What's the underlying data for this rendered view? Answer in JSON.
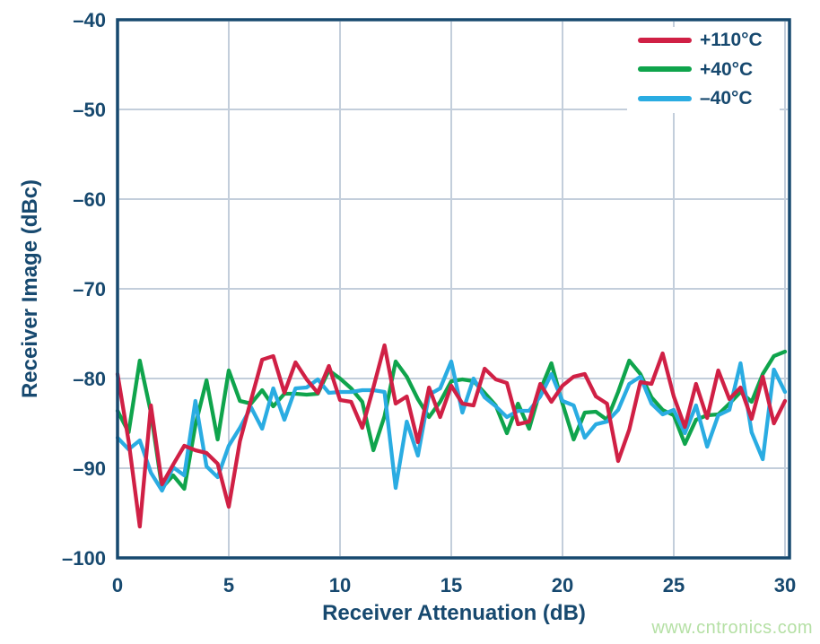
{
  "page": {
    "background": "#ffffff",
    "watermark": "www.cntronics.com"
  },
  "colors": {
    "axis": "#17496f",
    "text": "#17496f",
    "grid": "#c3cedb",
    "watermark": "#b5e0a5"
  },
  "chart_data": {
    "type": "line",
    "title": "",
    "xlabel": "Receiver Attenuation (dB)",
    "ylabel": "Receiver Image (dBc)",
    "xlim": [
      0,
      30
    ],
    "ylim": [
      -100,
      -40
    ],
    "grid": true,
    "legend_position": "top-right-inside",
    "x_ticks": [
      0,
      5,
      10,
      15,
      20,
      25,
      30
    ],
    "x_tick_labels": [
      "0",
      "5",
      "10",
      "15",
      "20",
      "25",
      "30"
    ],
    "y_ticks": [
      -40,
      -50,
      -60,
      -70,
      -80,
      -90,
      -100
    ],
    "y_tick_labels": [
      "–40",
      "–50",
      "–60",
      "–70",
      "–80",
      "–90",
      "–100"
    ],
    "x": [
      0,
      0.5,
      1,
      1.5,
      2,
      2.5,
      3,
      3.5,
      4,
      4.5,
      5,
      5.5,
      6,
      6.5,
      7,
      7.5,
      8,
      8.5,
      9,
      9.5,
      10,
      10.5,
      11,
      11.5,
      12,
      12.5,
      13,
      13.5,
      14,
      14.5,
      15,
      15.5,
      16,
      16.5,
      17,
      17.5,
      18,
      18.5,
      19,
      19.5,
      20,
      20.5,
      21,
      21.5,
      22,
      22.5,
      23,
      23.5,
      24,
      24.5,
      25,
      25.5,
      26,
      26.5,
      27,
      27.5,
      28,
      28.5,
      29,
      29.5,
      30
    ],
    "series": [
      {
        "name": "+110°C",
        "color": "#d02045",
        "values": [
          -79.5,
          -87.0,
          -96.5,
          -83.0,
          -91.8,
          -89.6,
          -87.5,
          -88.0,
          -88.3,
          -89.5,
          -94.3,
          -87.0,
          -82.4,
          -77.9,
          -77.5,
          -81.6,
          -78.2,
          -80.1,
          -81.6,
          -78.6,
          -82.4,
          -82.6,
          -85.5,
          -81.0,
          -76.3,
          -82.8,
          -82.0,
          -87.1,
          -81.0,
          -84.3,
          -80.8,
          -82.8,
          -83.0,
          -78.9,
          -80.1,
          -80.5,
          -85.1,
          -84.8,
          -80.6,
          -82.6,
          -80.8,
          -79.8,
          -79.5,
          -82.0,
          -82.8,
          -89.2,
          -85.7,
          -80.4,
          -80.6,
          -77.2,
          -82.0,
          -85.4,
          -80.6,
          -84.4,
          -79.1,
          -82.3,
          -81.0,
          -84.5,
          -79.8,
          -85.0,
          -82.5
        ]
      },
      {
        "name": "+40°C",
        "color": "#0fa44c",
        "values": [
          -83.6,
          -86.0,
          -78.0,
          -83.8,
          -92.2,
          -90.8,
          -92.3,
          -85.2,
          -80.2,
          -86.8,
          -79.1,
          -82.5,
          -82.8,
          -81.3,
          -83.1,
          -81.7,
          -81.7,
          -81.8,
          -81.7,
          -79.1,
          -80.0,
          -81.1,
          -82.6,
          -88.0,
          -84.2,
          -78.1,
          -79.8,
          -82.3,
          -84.3,
          -82.6,
          -80.3,
          -80.1,
          -80.3,
          -81.6,
          -83.0,
          -86.1,
          -82.8,
          -85.6,
          -81.3,
          -78.3,
          -82.8,
          -86.8,
          -83.8,
          -83.7,
          -84.6,
          -81.5,
          -78.0,
          -79.5,
          -82.1,
          -83.5,
          -84.1,
          -87.3,
          -84.6,
          -84.1,
          -84.0,
          -82.8,
          -81.5,
          -82.6,
          -79.5,
          -77.5,
          -77.0
        ]
      },
      {
        "name": "–40°C",
        "color": "#2aace2",
        "values": [
          -86.6,
          -87.9,
          -86.9,
          -90.5,
          -92.5,
          -89.9,
          -90.8,
          -82.5,
          -89.8,
          -91.0,
          -87.5,
          -85.5,
          -83.2,
          -85.6,
          -81.1,
          -84.6,
          -81.1,
          -81.0,
          -80.1,
          -81.6,
          -81.5,
          -81.5,
          -81.3,
          -81.3,
          -81.5,
          -92.2,
          -84.8,
          -88.6,
          -81.8,
          -81.1,
          -78.1,
          -83.8,
          -80.0,
          -82.1,
          -83.1,
          -84.3,
          -83.6,
          -83.6,
          -82.0,
          -79.5,
          -82.5,
          -83.0,
          -86.6,
          -85.1,
          -84.8,
          -83.5,
          -80.6,
          -79.8,
          -82.8,
          -84.0,
          -83.5,
          -86.1,
          -83.0,
          -87.6,
          -84.1,
          -83.5,
          -78.3,
          -86.0,
          -89.0,
          -79.0,
          -81.5
        ]
      }
    ]
  }
}
